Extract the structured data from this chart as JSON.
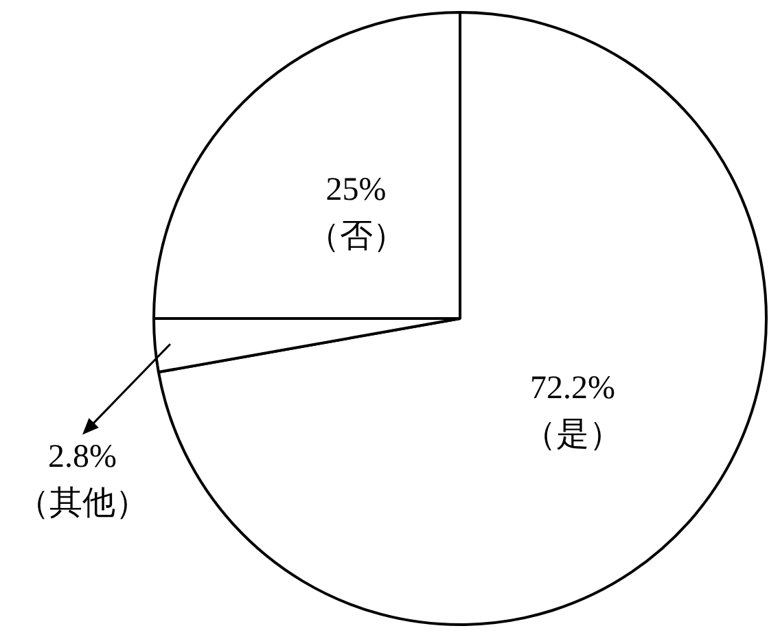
{
  "chart_data": {
    "type": "pie",
    "categories": [
      "（是）",
      "（其他）",
      "（否）"
    ],
    "values": [
      72.2,
      2.8,
      25
    ],
    "value_labels": [
      "72.2%",
      "2.8%",
      "25%"
    ],
    "colors": [
      "#ffffff",
      "#ffffff",
      "#ffffff"
    ],
    "legend": false
  }
}
